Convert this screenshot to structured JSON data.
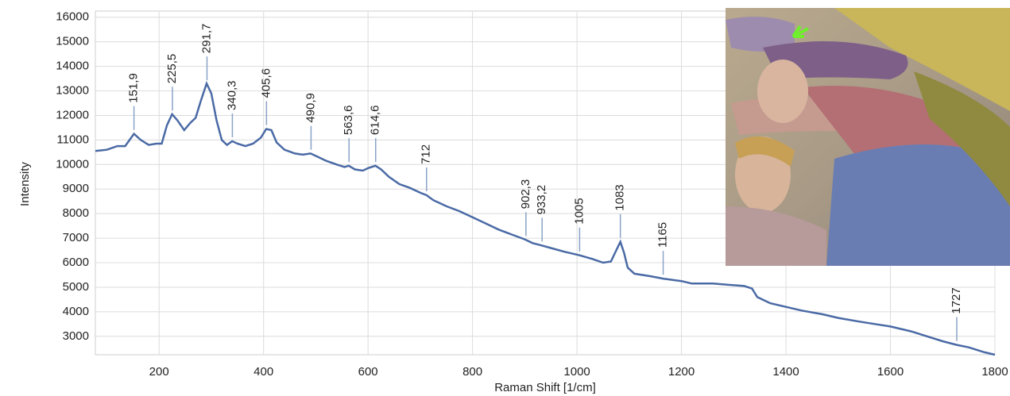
{
  "chart_data": {
    "type": "line",
    "xlabel": "Raman Shift [1/cm]",
    "ylabel": "Intensity",
    "xlim": [
      78,
      1800
    ],
    "ylim": [
      2250,
      16250
    ],
    "xticks": [
      200,
      400,
      600,
      800,
      1000,
      1200,
      1400,
      1600,
      1800
    ],
    "yticks": [
      3000,
      4000,
      5000,
      6000,
      7000,
      8000,
      9000,
      10000,
      11000,
      12000,
      13000,
      14000,
      15000,
      16000
    ],
    "grid": true,
    "series": [
      {
        "color": "#4a6aa5",
        "x": [
          78,
          100,
          120,
          135,
          140,
          152,
          165,
          180,
          195,
          205,
          215,
          225,
          235,
          248,
          260,
          270,
          280,
          291,
          300,
          310,
          320,
          330,
          340,
          350,
          365,
          380,
          395,
          405,
          415,
          425,
          440,
          460,
          475,
          490,
          505,
          520,
          540,
          555,
          563,
          575,
          590,
          600,
          614,
          625,
          640,
          660,
          680,
          700,
          712,
          725,
          750,
          775,
          800,
          825,
          850,
          875,
          900,
          915,
          933,
          950,
          975,
          1005,
          1030,
          1050,
          1065,
          1075,
          1083,
          1090,
          1097,
          1110,
          1140,
          1165,
          1200,
          1220,
          1260,
          1290,
          1320,
          1335,
          1345,
          1370,
          1400,
          1430,
          1470,
          1500,
          1540,
          1570,
          1600,
          1640,
          1670,
          1700,
          1727,
          1750,
          1780,
          1800
        ],
        "values": [
          10550,
          10600,
          10750,
          10750,
          10900,
          11250,
          11000,
          10800,
          10850,
          10850,
          11600,
          12050,
          11800,
          11400,
          11700,
          11900,
          12600,
          13300,
          12900,
          11800,
          11000,
          10800,
          10950,
          10850,
          10750,
          10850,
          11100,
          11450,
          11400,
          10900,
          10600,
          10450,
          10400,
          10450,
          10300,
          10150,
          10000,
          9900,
          9950,
          9800,
          9750,
          9850,
          9950,
          9800,
          9500,
          9200,
          9050,
          8850,
          8750,
          8550,
          8300,
          8100,
          7850,
          7600,
          7350,
          7150,
          6950,
          6800,
          6700,
          6600,
          6450,
          6300,
          6150,
          6000,
          6050,
          6500,
          6850,
          6400,
          5800,
          5550,
          5450,
          5350,
          5250,
          5150,
          5150,
          5100,
          5050,
          4950,
          4600,
          4350,
          4200,
          4050,
          3900,
          3750,
          3600,
          3500,
          3400,
          3200,
          3000,
          2800,
          2650,
          2550,
          2350,
          2250
        ]
      }
    ],
    "annotations": [
      {
        "x": {
          "value": 151.9,
          "label": "151,9"
        }
      },
      {
        "x": {
          "value": 225.5,
          "label": "225,5"
        }
      },
      {
        "x": {
          "value": 291.7,
          "label": "291,7"
        }
      },
      {
        "x": {
          "value": 340.3,
          "label": "340,3"
        }
      },
      {
        "x": {
          "value": 405.6,
          "label": "405,6"
        }
      },
      {
        "x": {
          "value": 490.9,
          "label": "490,9"
        }
      },
      {
        "x": {
          "value": 563.6,
          "label": "563,6"
        }
      },
      {
        "x": {
          "value": 614.6,
          "label": "614,6"
        }
      },
      {
        "x": 712
      },
      {
        "x": {
          "value": 902.3,
          "label": "902,3"
        }
      },
      {
        "x": {
          "value": 933.2,
          "label": "933,2"
        }
      },
      {
        "x": 1005
      },
      {
        "x": 1083
      },
      {
        "x": 1165
      },
      {
        "x": 1727
      }
    ]
  }
}
